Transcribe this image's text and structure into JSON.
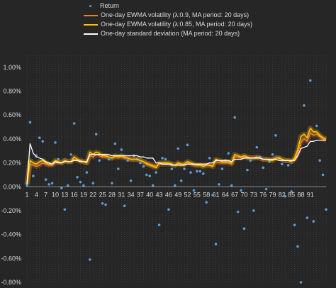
{
  "chart_data": {
    "type": "line",
    "title": "",
    "xlabel": "",
    "ylabel": "",
    "ylim": [
      -0.008,
      0.011
    ],
    "yticks": [
      -0.008,
      -0.006,
      -0.004,
      -0.002,
      0,
      0.002,
      0.004,
      0.006,
      0.008,
      0.01
    ],
    "ytick_labels": [
      "-0.80%",
      "-0.60%",
      "-0.40%",
      "-0.20%",
      "0.00%",
      "0.20%",
      "0.40%",
      "0.60%",
      "0.80%",
      "1.00%"
    ],
    "xlim": [
      1,
      96
    ],
    "xtick_labels": [
      "1",
      "4",
      "7",
      "10",
      "13",
      "16",
      "19",
      "22",
      "25",
      "28",
      "31",
      "34",
      "37",
      "40",
      "43",
      "46",
      "49",
      "52",
      "55",
      "58",
      "61",
      "64",
      "67",
      "70",
      "73",
      "76",
      "79",
      "82",
      "85",
      "88",
      "91"
    ],
    "grid": "vertical-dotted",
    "legend_position": "top",
    "series": [
      {
        "name": "Return",
        "style": "scatter",
        "color": "#5b9bd5",
        "values": [
          0.0001,
          0.0054,
          0.0009,
          0.0026,
          0.0041,
          0.0038,
          0.0006,
          0.0002,
          0.0003,
          0.0037,
          0.0023,
          -0.0001,
          -0.0019,
          0.0001,
          0.0027,
          0.0053,
          0.0008,
          0.0004,
          0.0001,
          0.0012,
          -0.0061,
          0.0003,
          0.0044,
          0.0022,
          -0.0014,
          -0.0015,
          0.0023,
          0.0003,
          0.0036,
          0.0015,
          0.0031,
          -0.0016,
          0.0022,
          0.0005,
          0.0026,
          0.0023,
          0.002,
          0.0017,
          0.001,
          0.0009,
          0.0001,
          0.0012,
          -0.0032,
          0.0024,
          0.0023,
          -0.0019,
          0.0015,
          0.0001,
          0.0032,
          0.0005,
          0.0015,
          0.0035,
          0.0012,
          -0.0003,
          0.0013,
          0.0013,
          0.0011,
          -0.0013,
          0.0024,
          -0.0007,
          -0.0048,
          0.0002,
          0.0015,
          0.0022,
          0.0028,
          0.0001,
          0.0058,
          -0.0021,
          -0.0003,
          -0.0035,
          0.0014,
          0.0022,
          -0.002,
          0.0033,
          0.0025,
          0.0016,
          -0.0002,
          0.0021,
          0.0027,
          0.0043,
          0.0024,
          0.0019,
          -0.0008,
          0.0018,
          -0.0004,
          -0.0032,
          -0.005,
          -0.008,
          0.0068,
          -0.0026,
          0.0089,
          -0.0029,
          0.0051,
          0.0022,
          0.001,
          -0.0019
        ]
      },
      {
        "name": "One-day EWMA volatility (λ:0.9, MA period: 20 days)",
        "style": "line",
        "color": "#ed7d31",
        "values": [
          0.0002,
          0.0019,
          0.0018,
          0.0017,
          0.0018,
          0.002,
          0.0019,
          0.0018,
          0.0018,
          0.002,
          0.002,
          0.002,
          0.0022,
          0.0021,
          0.0021,
          0.0023,
          0.0022,
          0.0021,
          0.0021,
          0.002,
          0.0026,
          0.0025,
          0.0027,
          0.0026,
          0.0025,
          0.0025,
          0.0025,
          0.0024,
          0.0025,
          0.0025,
          0.0025,
          0.0024,
          0.0024,
          0.0023,
          0.0023,
          0.0023,
          0.0022,
          0.0021,
          0.002,
          0.0019,
          0.0018,
          0.0017,
          0.0019,
          0.0019,
          0.0019,
          0.0019,
          0.0019,
          0.0018,
          0.0019,
          0.0018,
          0.0019,
          0.002,
          0.0019,
          0.0018,
          0.0018,
          0.0018,
          0.0018,
          0.0018,
          0.0018,
          0.0018,
          0.0021,
          0.002,
          0.002,
          0.002,
          0.002,
          0.0019,
          0.0025,
          0.0025,
          0.0024,
          0.0025,
          0.0024,
          0.0024,
          0.0024,
          0.0024,
          0.0024,
          0.0023,
          0.0023,
          0.0023,
          0.0023,
          0.0024,
          0.0024,
          0.0023,
          0.0022,
          0.0022,
          0.0021,
          0.0023,
          0.0028,
          0.0037,
          0.004,
          0.0038,
          0.0045,
          0.0043,
          0.0044,
          0.0042,
          0.004,
          0.0039
        ]
      },
      {
        "name": "One-day EWMA volatility (λ:0.85, MA period: 20 days)",
        "style": "line",
        "color": "#ffc000",
        "values": [
          0.0002,
          0.0022,
          0.002,
          0.0019,
          0.0021,
          0.0022,
          0.002,
          0.0019,
          0.0019,
          0.0022,
          0.0021,
          0.002,
          0.0022,
          0.0021,
          0.0021,
          0.0025,
          0.0023,
          0.0022,
          0.0021,
          0.002,
          0.0029,
          0.0027,
          0.0029,
          0.0028,
          0.0026,
          0.0026,
          0.0025,
          0.0024,
          0.0026,
          0.0025,
          0.0026,
          0.0025,
          0.0024,
          0.0023,
          0.0023,
          0.0023,
          0.0022,
          0.0021,
          0.0019,
          0.0018,
          0.0017,
          0.0016,
          0.002,
          0.002,
          0.002,
          0.002,
          0.0019,
          0.0018,
          0.002,
          0.0019,
          0.0019,
          0.0021,
          0.002,
          0.0019,
          0.0018,
          0.0018,
          0.0017,
          0.0018,
          0.0018,
          0.0017,
          0.0023,
          0.0022,
          0.0021,
          0.0021,
          0.0021,
          0.002,
          0.0027,
          0.0026,
          0.0025,
          0.0026,
          0.0025,
          0.0024,
          0.0024,
          0.0025,
          0.0024,
          0.0023,
          0.0023,
          0.0022,
          0.0022,
          0.0024,
          0.0024,
          0.0023,
          0.0022,
          0.0022,
          0.0021,
          0.0024,
          0.0031,
          0.0042,
          0.0044,
          0.0041,
          0.0049,
          0.0046,
          0.0046,
          0.0043,
          0.0041,
          0.004
        ]
      },
      {
        "name": "One-day standard  deviation (MA period: 20 days)",
        "style": "line",
        "color": "#ffffff",
        "values": [
          0.0002,
          0.0036,
          0.0028,
          0.0025,
          0.0024,
          0.0023,
          0.0021,
          0.002,
          0.0019,
          0.0021,
          0.002,
          0.002,
          0.0021,
          0.0021,
          0.0021,
          0.0022,
          0.0022,
          0.0021,
          0.0021,
          0.0021,
          0.0027,
          0.0027,
          0.0027,
          0.0027,
          0.0027,
          0.0027,
          0.0027,
          0.0026,
          0.0026,
          0.0026,
          0.0026,
          0.0026,
          0.0026,
          0.0026,
          0.0026,
          0.0026,
          0.0025,
          0.0025,
          0.0024,
          0.0024,
          0.0024,
          0.002,
          0.002,
          0.0019,
          0.0019,
          0.0019,
          0.0018,
          0.0018,
          0.0018,
          0.0018,
          0.0018,
          0.0019,
          0.0019,
          0.0019,
          0.0019,
          0.0019,
          0.0019,
          0.0019,
          0.002,
          0.002,
          0.0022,
          0.0022,
          0.0022,
          0.0022,
          0.0022,
          0.0021,
          0.0023,
          0.0023,
          0.0023,
          0.0024,
          0.0024,
          0.0024,
          0.0024,
          0.0024,
          0.0024,
          0.0023,
          0.0023,
          0.0023,
          0.0023,
          0.0023,
          0.0022,
          0.0022,
          0.0022,
          0.0022,
          0.0022,
          0.0022,
          0.0026,
          0.0032,
          0.0033,
          0.0034,
          0.0038,
          0.0038,
          0.0039,
          0.0039,
          0.0039,
          0.0039
        ]
      }
    ]
  }
}
